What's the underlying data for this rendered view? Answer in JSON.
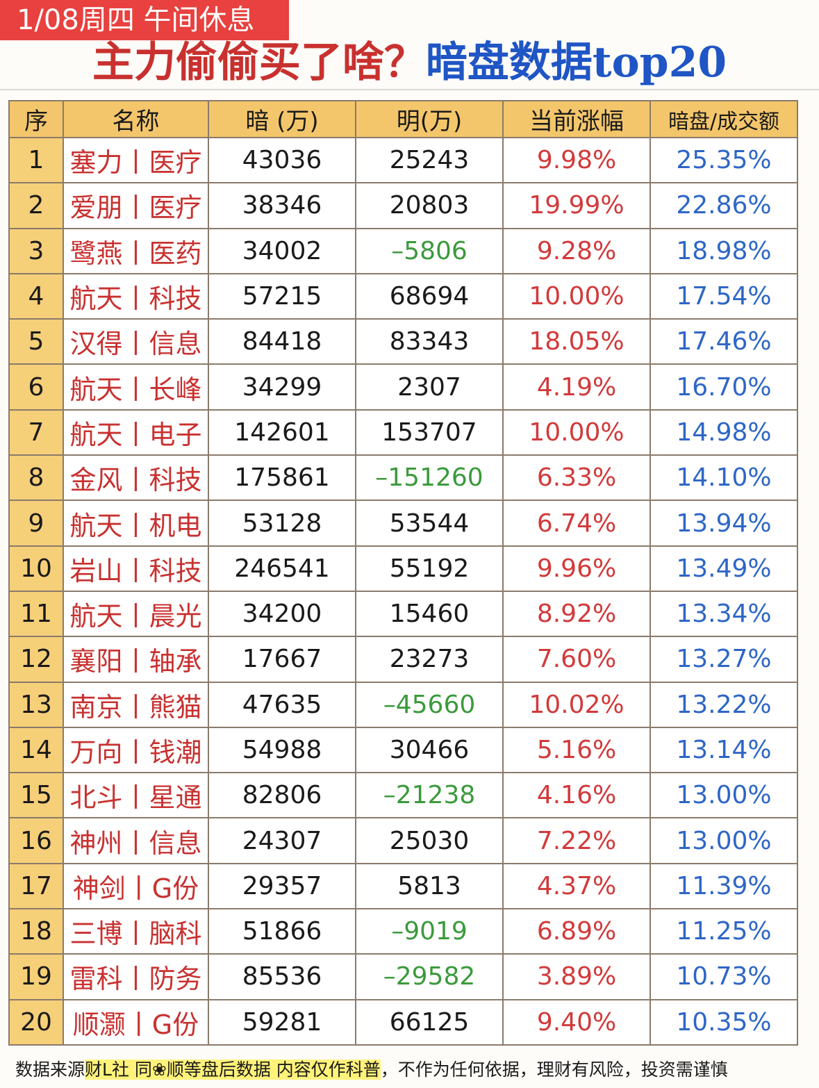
{
  "banner": {
    "text": "1/08周四 午间休息"
  },
  "title": {
    "main": "主力偷偷买了啥？",
    "accent": "暗盘数据top20"
  },
  "table": {
    "headers": {
      "idx": "序",
      "name": "名称",
      "dark": "暗 (万)",
      "ming": "明(万)",
      "change": "当前涨幅",
      "ratio": "暗盘/成交额"
    },
    "rows": [
      {
        "idx": "1",
        "name": "塞力丨医疗",
        "dark": "43036",
        "ming": "25243",
        "change": "9.98%",
        "ratio": "25.35%"
      },
      {
        "idx": "2",
        "name": "爱朋丨医疗",
        "dark": "38346",
        "ming": "20803",
        "change": "19.99%",
        "ratio": "22.86%"
      },
      {
        "idx": "3",
        "name": "鹭燕丨医药",
        "dark": "34002",
        "ming": "–5806",
        "change": "9.28%",
        "ratio": "18.98%"
      },
      {
        "idx": "4",
        "name": "航天丨科技",
        "dark": "57215",
        "ming": "68694",
        "change": "10.00%",
        "ratio": "17.54%"
      },
      {
        "idx": "5",
        "name": "汉得丨信息",
        "dark": "84418",
        "ming": "83343",
        "change": "18.05%",
        "ratio": "17.46%"
      },
      {
        "idx": "6",
        "name": "航天丨长峰",
        "dark": "34299",
        "ming": "2307",
        "change": "4.19%",
        "ratio": "16.70%"
      },
      {
        "idx": "7",
        "name": "航天丨电子",
        "dark": "142601",
        "ming": "153707",
        "change": "10.00%",
        "ratio": "14.98%"
      },
      {
        "idx": "8",
        "name": "金风丨科技",
        "dark": "175861",
        "ming": "–151260",
        "change": "6.33%",
        "ratio": "14.10%"
      },
      {
        "idx": "9",
        "name": "航天丨机电",
        "dark": "53128",
        "ming": "53544",
        "change": "6.74%",
        "ratio": "13.94%"
      },
      {
        "idx": "10",
        "name": "岩山丨科技",
        "dark": "246541",
        "ming": "55192",
        "change": "9.96%",
        "ratio": "13.49%"
      },
      {
        "idx": "11",
        "name": "航天丨晨光",
        "dark": "34200",
        "ming": "15460",
        "change": "8.92%",
        "ratio": "13.34%"
      },
      {
        "idx": "12",
        "name": "襄阳丨轴承",
        "dark": "17667",
        "ming": "23273",
        "change": "7.60%",
        "ratio": "13.27%"
      },
      {
        "idx": "13",
        "name": "南京丨熊猫",
        "dark": "47635",
        "ming": "–45660",
        "change": "10.02%",
        "ratio": "13.22%"
      },
      {
        "idx": "14",
        "name": "万向丨钱潮",
        "dark": "54988",
        "ming": "30466",
        "change": "5.16%",
        "ratio": "13.14%"
      },
      {
        "idx": "15",
        "name": "北斗丨星通",
        "dark": "82806",
        "ming": "–21238",
        "change": "4.16%",
        "ratio": "13.00%"
      },
      {
        "idx": "16",
        "name": "神州丨信息",
        "dark": "24307",
        "ming": "25030",
        "change": "7.22%",
        "ratio": "13.00%"
      },
      {
        "idx": "17",
        "name": "神剑丨G份",
        "dark": "29357",
        "ming": "5813",
        "change": "4.37%",
        "ratio": "11.39%"
      },
      {
        "idx": "18",
        "name": "三博丨脑科",
        "dark": "51866",
        "ming": "–9019",
        "change": "6.89%",
        "ratio": "11.25%"
      },
      {
        "idx": "19",
        "name": "雷科丨防务",
        "dark": "85536",
        "ming": "–29582",
        "change": "3.89%",
        "ratio": "10.73%"
      },
      {
        "idx": "20",
        "name": "顺灏丨G份",
        "dark": "59281",
        "ming": "66125",
        "change": "9.40%",
        "ratio": "10.35%"
      }
    ]
  },
  "footer": {
    "prefix": "数据来源",
    "source": "财L社 同❀顺等盘后数据 内容仅作科普",
    "suffix": "，不作为任何依据，理财有风险，投资需谨慎"
  },
  "colors": {
    "banner_bg": "#e8413f",
    "title_red": "#c8312f",
    "title_blue": "#1f55c5",
    "header_bg": "#f4c66b",
    "index_bg": "#f6cf79",
    "name_red": "#c8312f",
    "negative_green": "#3b9a3c",
    "change_red": "#d2393a",
    "ratio_blue": "#2e66c6",
    "highlight_yellow": "#fff27a"
  }
}
